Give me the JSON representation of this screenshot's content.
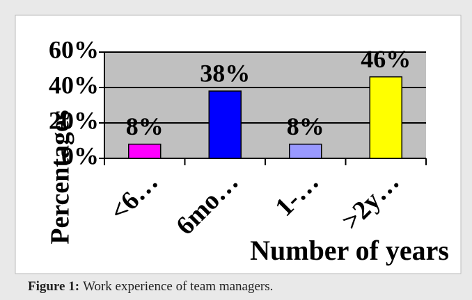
{
  "chart_data": {
    "type": "bar",
    "y_label": "Percentages",
    "x_label": "Number of years",
    "categories": [
      "<6…",
      "6mo…",
      "1-…",
      ">2y…"
    ],
    "values": [
      8,
      38,
      8,
      46
    ],
    "value_labels": [
      "8%",
      "38%",
      "8%",
      "46%"
    ],
    "colors": [
      "#ff00ff",
      "#0000ff",
      "#9999ff",
      "#ffff00"
    ],
    "ylim": [
      0,
      60
    ],
    "yticks": [
      {
        "value": 0,
        "label": "0%"
      },
      {
        "value": 20,
        "label": "20%"
      },
      {
        "value": 40,
        "label": "40%"
      },
      {
        "value": 60,
        "label": "60%"
      }
    ],
    "grid": true
  },
  "caption": {
    "label": "Figure 1:",
    "text": "Work experience of team managers."
  }
}
